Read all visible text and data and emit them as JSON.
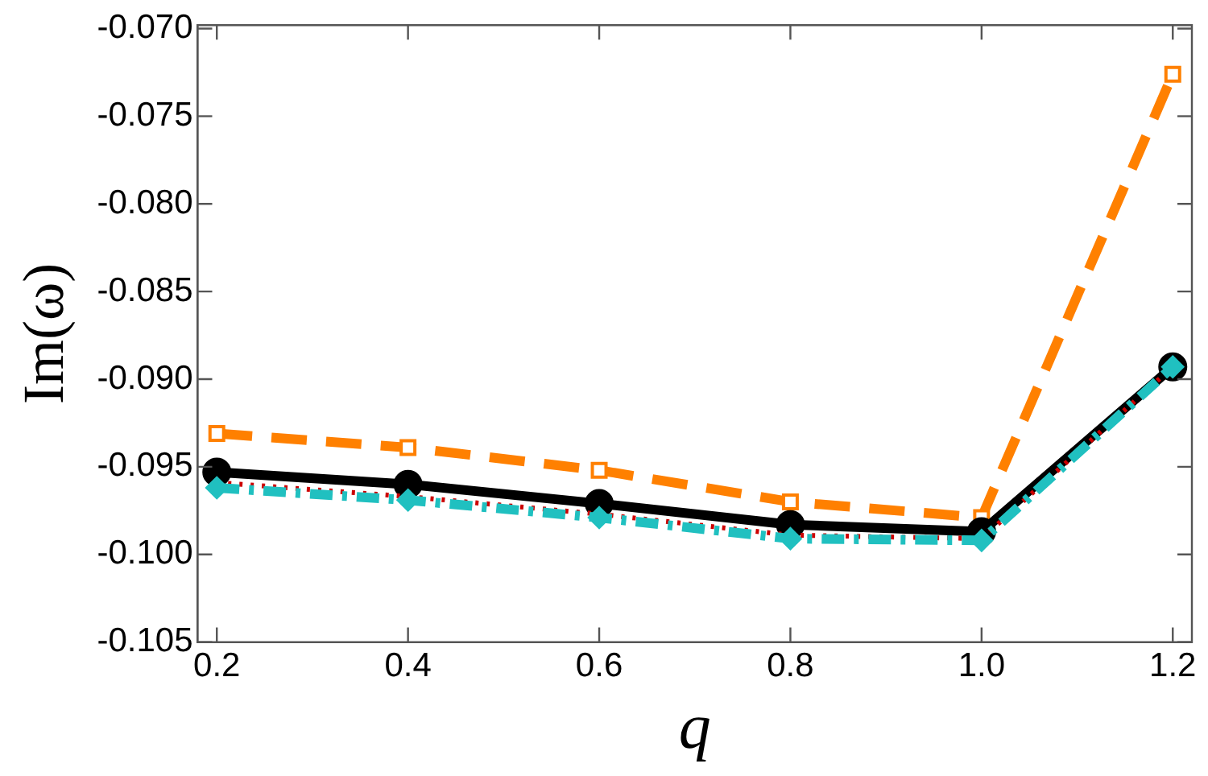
{
  "chart_data": {
    "type": "line",
    "xlabel": "q",
    "ylabel": "Im(ω)",
    "x": [
      0.2,
      0.4,
      0.6,
      0.8,
      1.0,
      1.2
    ],
    "xlim": [
      0.18,
      1.22
    ],
    "xticks": [
      {
        "value": 0.2,
        "label": "0.2"
      },
      {
        "value": 0.4,
        "label": "0.4"
      },
      {
        "value": 0.6,
        "label": "0.6"
      },
      {
        "value": 0.8,
        "label": "0.8"
      },
      {
        "value": 1.0,
        "label": "1.0"
      },
      {
        "value": 1.2,
        "label": "1.2"
      }
    ],
    "ylim": [
      -0.105,
      -0.0698
    ],
    "yticks": [
      {
        "value": -0.105,
        "label": "-0.105"
      },
      {
        "value": -0.1,
        "label": "-0.100"
      },
      {
        "value": -0.095,
        "label": "-0.095"
      },
      {
        "value": -0.09,
        "label": "-0.090"
      },
      {
        "value": -0.085,
        "label": "-0.085"
      },
      {
        "value": -0.08,
        "label": "-0.080"
      },
      {
        "value": -0.075,
        "label": "-0.075"
      },
      {
        "value": -0.07,
        "label": "-0.070"
      }
    ],
    "grid": false,
    "legend": false,
    "series": [
      {
        "color": "#ff8000",
        "values": [
          -0.0931,
          -0.0939,
          -0.0952,
          -0.097,
          -0.0979,
          -0.0726
        ],
        "marker": "square",
        "line_style": "dashed"
      },
      {
        "color": "#000000",
        "values": [
          -0.0953,
          -0.096,
          -0.0971,
          -0.0983,
          -0.0987,
          -0.0893
        ],
        "marker": "circle",
        "line_style": "solid"
      },
      {
        "color": "#cc0000",
        "values": [
          -0.0959,
          -0.0967,
          -0.0977,
          -0.0989,
          -0.0991,
          -0.0893
        ],
        "marker": "none",
        "line_style": "dotted"
      },
      {
        "color": "#20c0c0",
        "values": [
          -0.0962,
          -0.0969,
          -0.0979,
          -0.0991,
          -0.0992,
          -0.0893
        ],
        "marker": "diamond",
        "line_style": "dashdot"
      }
    ]
  }
}
